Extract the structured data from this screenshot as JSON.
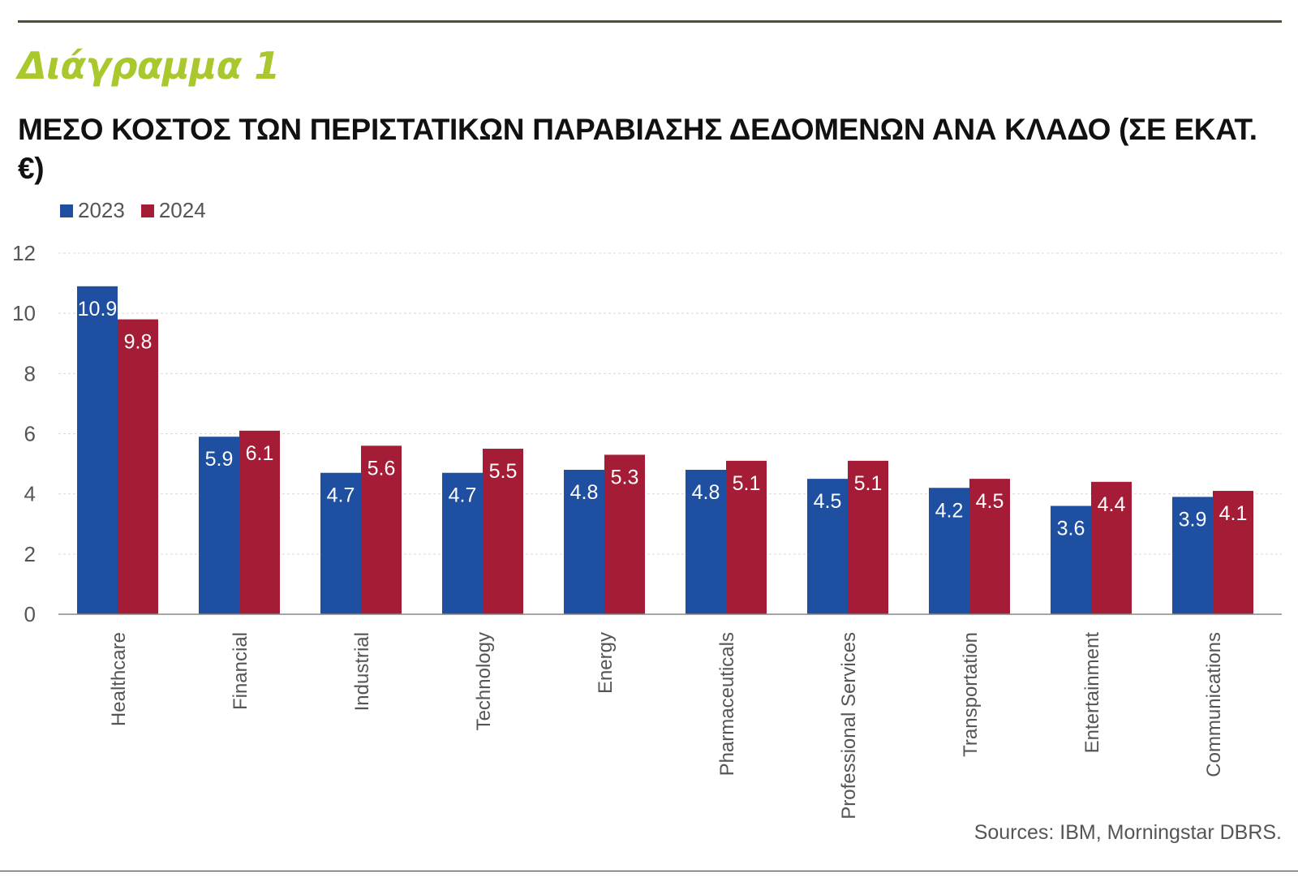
{
  "kicker": "Διάγραμμα 1",
  "title": "ΜΕΣΟ ΚΟΣΤΟΣ ΤΩΝ ΠΕΡΙΣΤΑΤΙΚΩΝ ΠΑΡΑΒΙΑΣΗΣ ΔΕΔΟΜΕΝΩΝ ΑΝΑ ΚΛΑΔΟ (ΣΕ ΕΚΑΤ. €)",
  "source": "Sources: IBM, Morningstar DBRS.",
  "colors": {
    "kicker": "#a8c82d",
    "series_2023": "#1f4fa0",
    "series_2024": "#a51c36",
    "axis_text": "#555555",
    "grid": "#d9d9d9",
    "baseline": "#888888",
    "rule": "#4d5236"
  },
  "chart_data": {
    "type": "bar",
    "title": "ΜΕΣΟ ΚΟΣΤΟΣ ΤΩΝ ΠΕΡΙΣΤΑΤΙΚΩΝ ΠΑΡΑΒΙΑΣΗΣ ΔΕΔΟΜΕΝΩΝ ΑΝΑ ΚΛΑΔΟ (ΣΕ ΕΚΑΤ. €)",
    "xlabel": "",
    "ylabel": "",
    "ylim": [
      0,
      12
    ],
    "yticks": [
      0,
      2,
      4,
      6,
      8,
      10,
      12
    ],
    "grid": true,
    "legend_position": "top-left",
    "categories": [
      "Healthcare",
      "Financial",
      "Industrial",
      "Technology",
      "Energy",
      "Pharmaceuticals",
      "Professional Services",
      "Transportation",
      "Entertainment",
      "Communications"
    ],
    "series": [
      {
        "name": "2023",
        "color": "#1f4fa0",
        "values": [
          10.9,
          5.9,
          4.7,
          4.7,
          4.8,
          4.8,
          4.5,
          4.2,
          3.6,
          3.9
        ]
      },
      {
        "name": "2024",
        "color": "#a51c36",
        "values": [
          9.8,
          6.1,
          5.6,
          5.5,
          5.3,
          5.1,
          5.1,
          4.5,
          4.4,
          4.1
        ]
      }
    ]
  }
}
